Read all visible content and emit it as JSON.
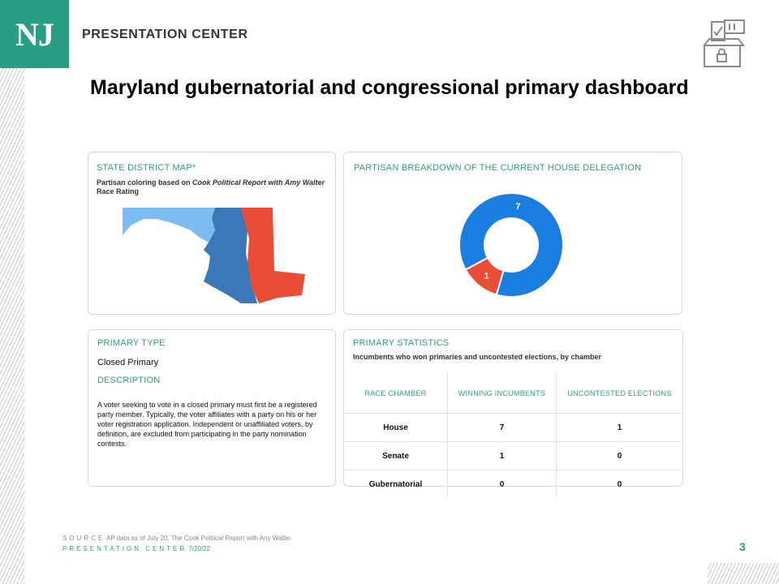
{
  "brand": {
    "logo": "NJ",
    "name": "PRESENTATION CENTER"
  },
  "icons": {
    "ballot": "ballot-box-icon"
  },
  "title": "Maryland gubernatorial and congressional primary dashboard",
  "map_card": {
    "title": "STATE DISTRICT MAP*",
    "subtitle_pre": "Partisan coloring based on ",
    "subtitle_italic": "Cook Political Report with Amy Walter",
    "subtitle_post": " Race Rating",
    "colors": {
      "light": "#7dbcf3",
      "medium": "#3b78b8",
      "red": "#ea4d35"
    }
  },
  "donut_card": {
    "title": "PARTISAN BREAKDOWN OF THE CURRENT HOUSE DELEGATION"
  },
  "chart_data": {
    "type": "pie",
    "categories": [
      "",
      ""
    ],
    "values": [
      7,
      1
    ],
    "data_labels": [
      "7",
      "1"
    ],
    "colors": [
      "#1a7ee0",
      "#ea4d35"
    ],
    "donut": true
  },
  "primary_type_card": {
    "title": "PRIMARY TYPE",
    "value": "Closed Primary",
    "desc_title": "DESCRIPTION",
    "description": "A voter seeking to vote in a closed primary must first be a registered party member. Typically, the voter affiliates with a party on his or her voter registration application. Independent or unaffiliated voters, by definition, are excluded from participating in the party nomination contests."
  },
  "stats_card": {
    "title": "PRIMARY STATISTICS",
    "subtitle": "Incumbents who won primaries and uncontested elections, by chamber",
    "columns": [
      "RACE CHAMBER",
      "WINNING INCUMBENTS",
      "UNCONTESTED ELECTIONS"
    ],
    "rows": [
      [
        "House",
        "7",
        "1"
      ],
      [
        "Senate",
        "1",
        "0"
      ],
      [
        "Gubernatorial",
        "0",
        "0"
      ]
    ]
  },
  "footer": {
    "source_label": "SOURCE",
    "source_text": "AP data as of July 20, The Cook Political Report with Any Walter",
    "center_label": "PRESENTATION CENTER",
    "date": "7/20/22"
  },
  "page_number": "3"
}
